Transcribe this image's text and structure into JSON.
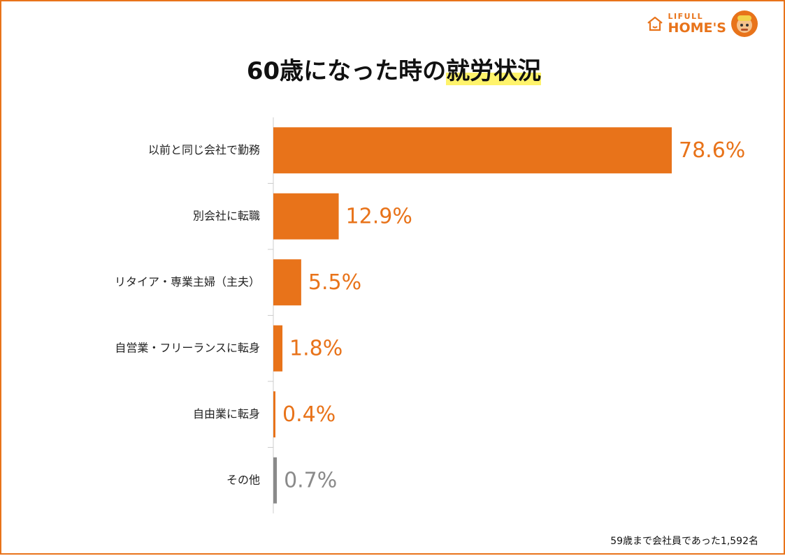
{
  "logo": {
    "brand_top": "LIFULL",
    "brand_bottom": "HOME'S"
  },
  "title": {
    "prefix": "60歳になった時の",
    "highlight": "就労状況"
  },
  "note": "59歳まで会社員であった1,592名",
  "colors": {
    "accent": "#E8731A",
    "other": "#8A8A8A",
    "highlight": "#FFF36B"
  },
  "chart_data": {
    "type": "bar",
    "orientation": "horizontal",
    "categories": [
      "以前と同じ会社で勤務",
      "別会社に転職",
      "リタイア・専業主婦（主夫）",
      "自営業・フリーランスに転身",
      "自由業に転身",
      "その他"
    ],
    "values": [
      78.6,
      12.9,
      5.5,
      1.8,
      0.4,
      0.7
    ],
    "value_labels": [
      "78.6%",
      "12.9%",
      "5.5%",
      "1.8%",
      "0.4%",
      "0.7%"
    ],
    "unit": "%",
    "grid": false,
    "legend": "none"
  }
}
